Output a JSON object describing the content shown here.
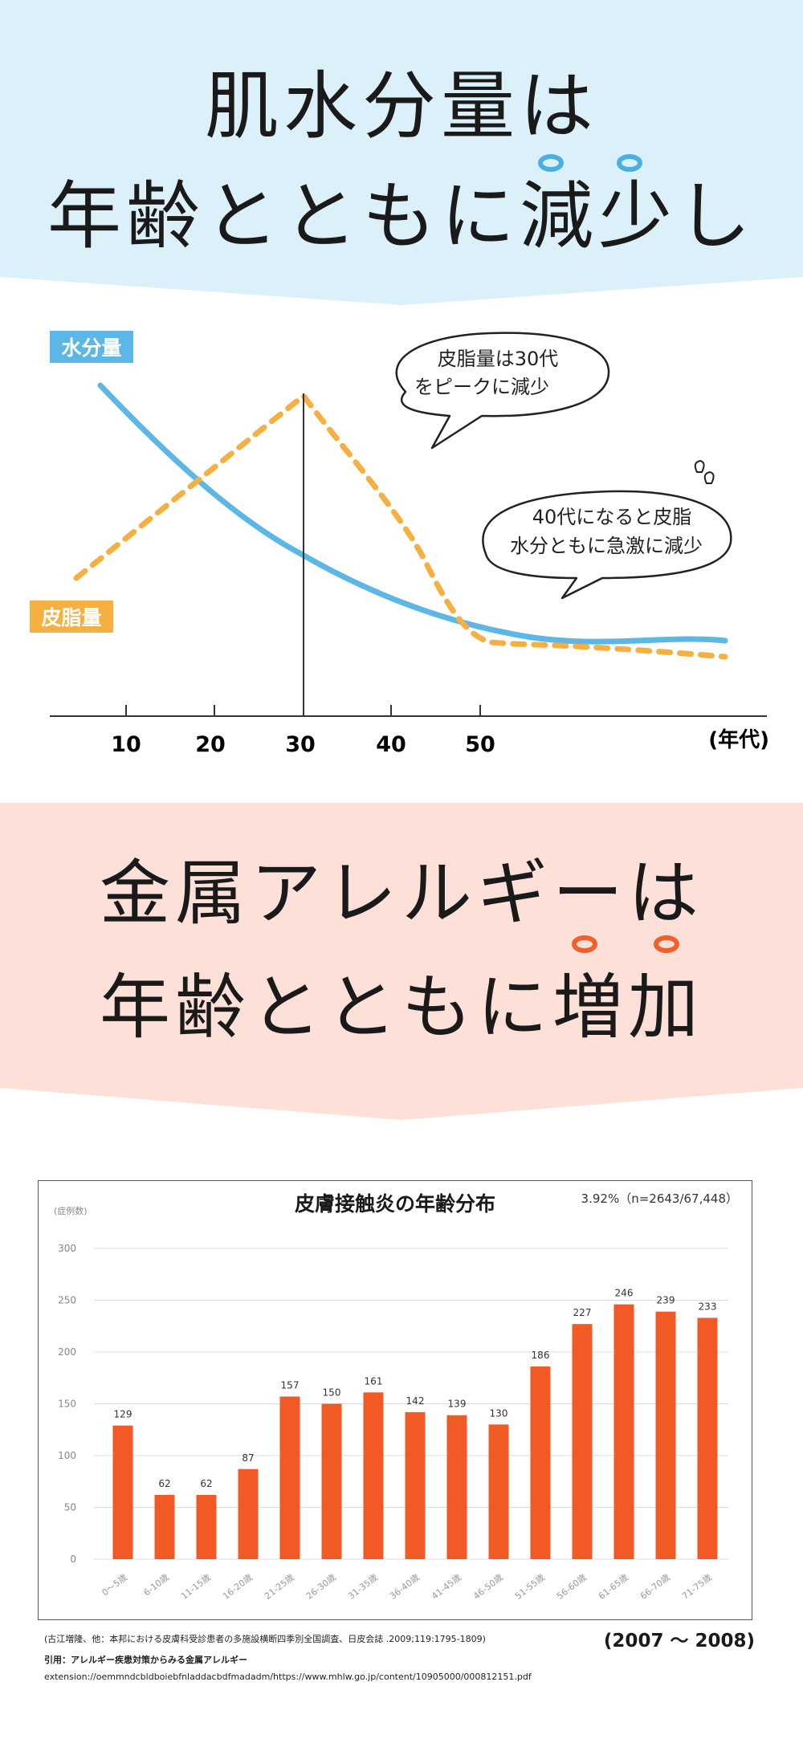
{
  "section1": {
    "headline_line1": "肌水分量は",
    "headline_line2": "年齢とともに減少し",
    "accent_color": "#4bb0e0",
    "label_water": "水分量",
    "label_sebum": "皮脂量",
    "bubble1_line1": "皮脂量は30代",
    "bubble1_line2": "をピークに減少",
    "bubble2_line1": "40代になると皮脂",
    "bubble2_line2": "水分ともに急激に減少",
    "axis_unit": "(年代)",
    "ticks": [
      "10",
      "20",
      "30",
      "40",
      "50"
    ],
    "water_color": "#5cb7e7",
    "sebum_color": "#f6b041"
  },
  "section2": {
    "headline_line1": "金属アレルギーは",
    "headline_line2": "年齢とともに増加",
    "accent_color": "#f0602a"
  },
  "chart_data": {
    "type": "bar",
    "title": "皮膚接触炎の年齢分布",
    "ylabel": "(症例数)",
    "note": "3.92%（n=2643/67,448）",
    "ylim": [
      0,
      300
    ],
    "yticks": [
      "0",
      "50",
      "100",
      "150",
      "200",
      "250",
      "300"
    ],
    "categories": [
      "0～5歳",
      "6-10歳",
      "11-15歳",
      "16-20歳",
      "21-25歳",
      "26-30歳",
      "31-35歳",
      "36-40歳",
      "41-45歳",
      "46-50歳",
      "51-55歳",
      "56-60歳",
      "61-65歳",
      "66-70歳",
      "71-75歳"
    ],
    "values": [
      129,
      62,
      62,
      87,
      157,
      150,
      161,
      142,
      139,
      130,
      186,
      227,
      246,
      239,
      233
    ],
    "bar_color": "#f15a24",
    "grid": true
  },
  "footer": {
    "period": "(2007 ～ 2008)",
    "source_line1": "(古江増隆、他：本邦における皮膚科受診患者の多施設横断四季別全国調査、日皮会誌 .2009;119:1795-1809)",
    "source_line2": "引用：アレルギー疾患対策からみる金属アレルギー",
    "source_line3": "extension://oemmndcbldboiebfnladdacbdfmadadm/https://www.mhlw.go.jp/content/10905000/000812151.pdf"
  }
}
